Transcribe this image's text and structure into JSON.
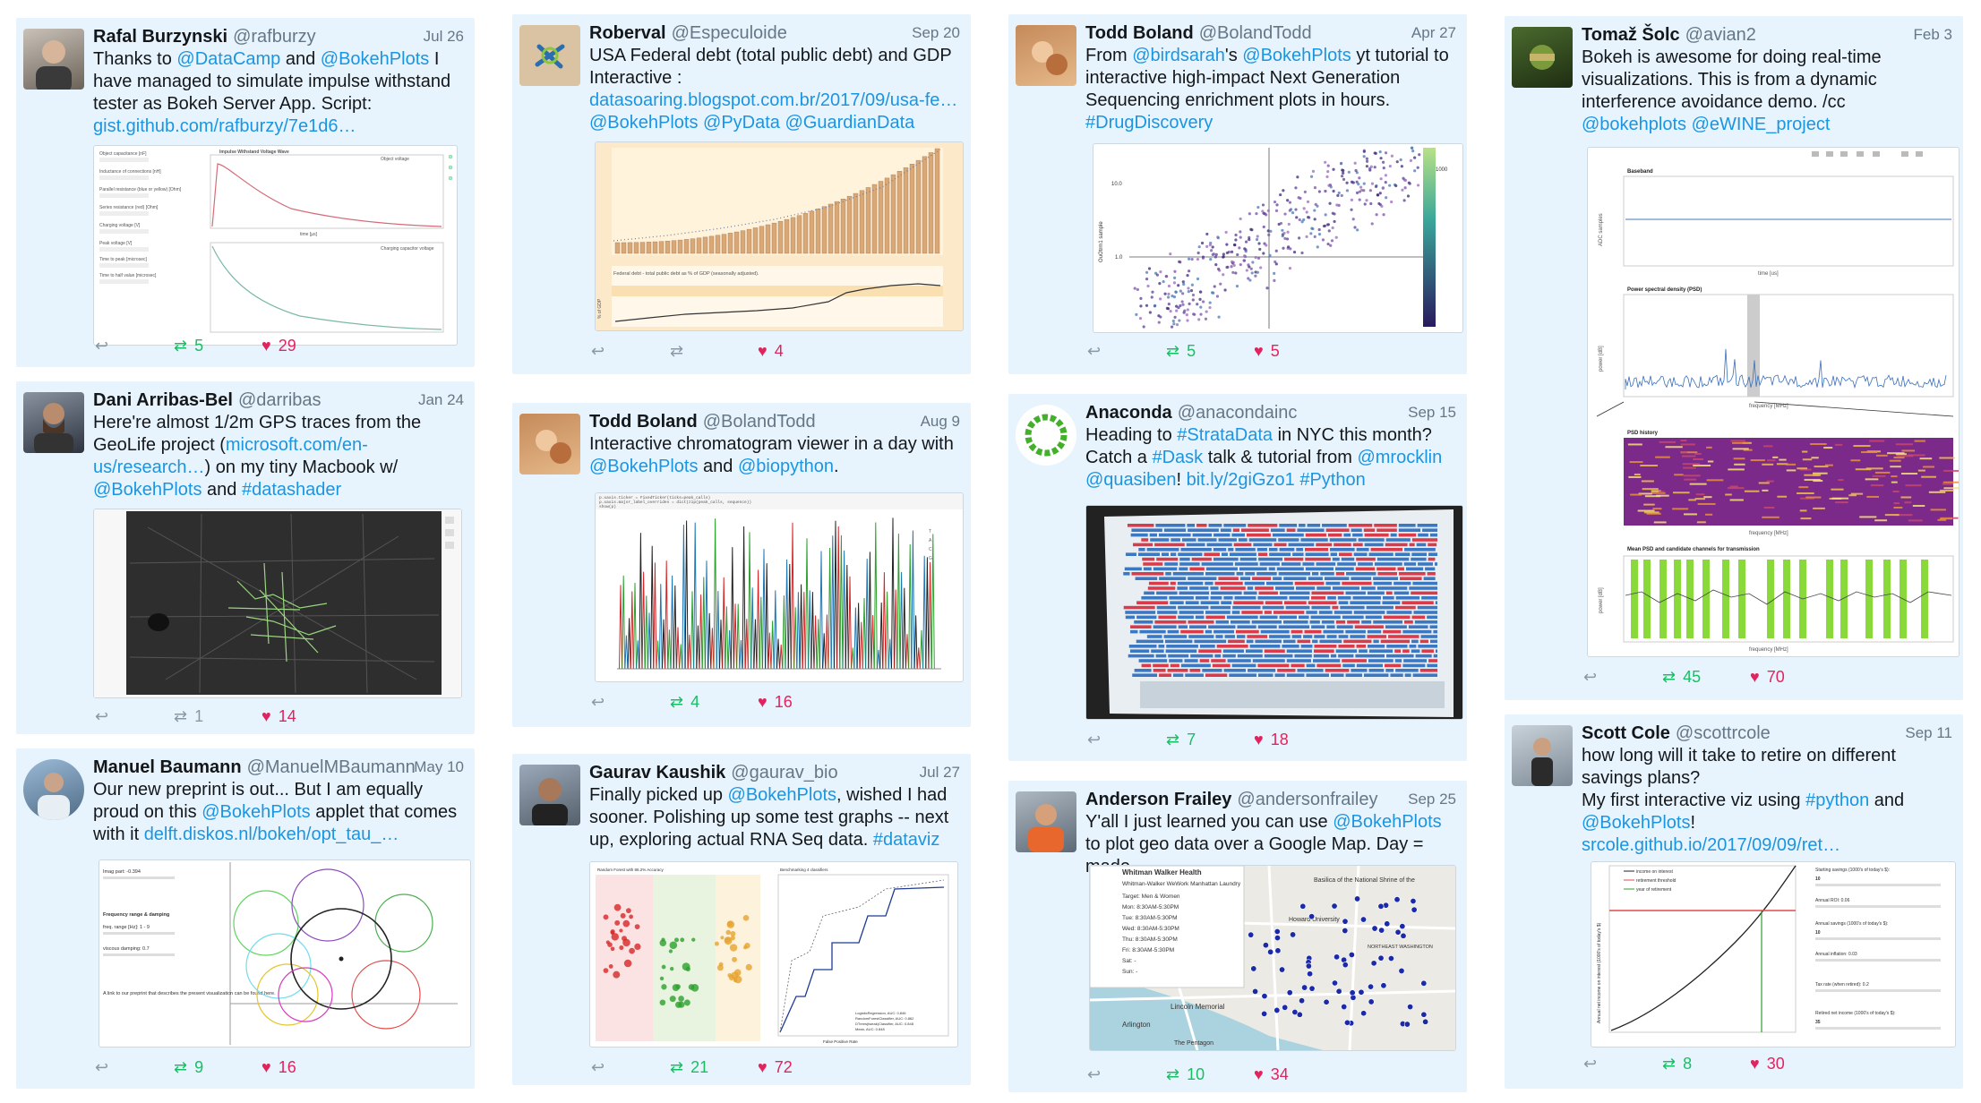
{
  "colors": {
    "card_bg": "#e8f4fd",
    "link": "#1b95e0",
    "retweet": "#17bf63",
    "like": "#e0245e"
  },
  "tweets": [
    {
      "name": "Rafal Burzynski",
      "handle": "@rafburzy",
      "date": "Jul 26",
      "parts": [
        {
          "t": "Thanks to "
        },
        {
          "t": "@DataCamp",
          "l": 1
        },
        {
          "t": " and "
        },
        {
          "t": "@BokehPlots",
          "l": 1
        },
        {
          "t": " I have managed to simulate impulse withstand tester as Bokeh Server App. Script: "
        },
        {
          "t": "gist.github.com/rafburzy/7e1d6…",
          "l": 1
        }
      ],
      "retweets": "5",
      "likes": "29"
    },
    {
      "name": "Dani Arribas-Bel",
      "handle": "@darribas",
      "date": "Jan 24",
      "parts": [
        {
          "t": "Here're almost 1/2m GPS traces from the GeoLife project ("
        },
        {
          "t": "microsoft.com/en-us/research…",
          "l": 1
        },
        {
          "t": ") on my tiny Macbook w/ "
        },
        {
          "t": "@BokehPlots",
          "l": 1
        },
        {
          "t": " and "
        },
        {
          "t": "#datashader",
          "l": 1
        }
      ],
      "retweets": "1",
      "likes": "14"
    },
    {
      "name": "Manuel Baumann",
      "handle": "@ManuelMBaumann",
      "date": "May 10",
      "parts": [
        {
          "t": "Our new preprint is out... But I am equally proud on this  "
        },
        {
          "t": "@BokehPlots",
          "l": 1
        },
        {
          "t": " applet that comes with it "
        },
        {
          "t": "delft.diskos.nl/bokeh/opt_tau_…",
          "l": 1
        }
      ],
      "retweets": "9",
      "likes": "16"
    },
    {
      "name": "Roberval",
      "handle": "@Especuloide",
      "date": "Sep 20",
      "parts": [
        {
          "t": "USA Federal debt (total public debt) and GDP Interactive : "
        },
        {
          "t": "datasoaring.blogspot.com.br/2017/09/usa-fe…",
          "l": 1
        },
        {
          "t": " "
        },
        {
          "t": "@BokehPlots @PyData @GuardianData",
          "l": 1
        }
      ],
      "retweets": "",
      "likes": "4"
    },
    {
      "name": "Todd Boland",
      "handle": "@BolandTodd",
      "date": "Aug 9",
      "parts": [
        {
          "t": "Interactive chromatogram viewer in a day with "
        },
        {
          "t": "@BokehPlots",
          "l": 1
        },
        {
          "t": " and "
        },
        {
          "t": "@biopython",
          "l": 1
        },
        {
          "t": "."
        }
      ],
      "retweets": "4",
      "likes": "16"
    },
    {
      "name": "Gaurav Kaushik",
      "handle": "@gaurav_bio",
      "date": "Jul 27",
      "parts": [
        {
          "t": "Finally picked up "
        },
        {
          "t": "@BokehPlots",
          "l": 1
        },
        {
          "t": ", wished I had sooner. Polishing up some test graphs -- next up, exploring actual RNA Seq data. "
        },
        {
          "t": "#dataviz",
          "l": 1
        }
      ],
      "retweets": "21",
      "likes": "72"
    },
    {
      "name": "Todd Boland",
      "handle": "@BolandTodd",
      "date": "Apr 27",
      "parts": [
        {
          "t": "From "
        },
        {
          "t": "@birdsarah",
          "l": 1
        },
        {
          "t": "'s "
        },
        {
          "t": "@BokehPlots",
          "l": 1
        },
        {
          "t": " yt tutorial to interactive high-impact Next Generation Sequencing enrichment plots in hours. "
        },
        {
          "t": "#DrugDiscovery",
          "l": 1
        }
      ],
      "retweets": "5",
      "likes": "5"
    },
    {
      "name": "Anaconda",
      "handle": "@anacondainc",
      "date": "Sep 15",
      "parts": [
        {
          "t": "Heading to "
        },
        {
          "t": "#StrataData",
          "l": 1
        },
        {
          "t": " in NYC this month? Catch a "
        },
        {
          "t": "#Dask",
          "l": 1
        },
        {
          "t": " talk & tutorial from "
        },
        {
          "t": "@mrocklin @quasiben",
          "l": 1
        },
        {
          "t": "! "
        },
        {
          "t": "bit.ly/2giGzo1 #Python",
          "l": 1
        }
      ],
      "retweets": "7",
      "likes": "18"
    },
    {
      "name": "Anderson Frailey",
      "handle": "@andersonfrailey",
      "date": "Sep 25",
      "parts": [
        {
          "t": "Y'all I just learned you can use "
        },
        {
          "t": "@BokehPlots",
          "l": 1
        },
        {
          "t": " to plot geo data over a Google Map. Day = made"
        }
      ],
      "retweets": "10",
      "likes": "34"
    },
    {
      "name": "Tomaž Šolc",
      "handle": "@avian2",
      "date": "Feb 3",
      "parts": [
        {
          "t": "Bokeh is awesome for doing real-time visualizations. This is from a dynamic interference avoidance demo. /cc "
        },
        {
          "t": "@bokehplots @eWINE_project",
          "l": 1
        }
      ],
      "retweets": "45",
      "likes": "70"
    },
    {
      "name": "Scott Cole",
      "handle": "@scottrcole",
      "date": "Sep 11",
      "parts": [
        {
          "t": "how long will it take to retire on different savings plans?\nMy first interactive viz using "
        },
        {
          "t": "#python",
          "l": 1
        },
        {
          "t": " and "
        },
        {
          "t": "@BokehPlots",
          "l": 1
        },
        {
          "t": "! "
        },
        {
          "t": "srcole.github.io/2017/09/09/ret…",
          "l": 1
        }
      ],
      "retweets": "8",
      "likes": "30"
    }
  ],
  "media_text": {
    "t0": {
      "top_title": "Impulse Withstand Voltage Wave",
      "top_legend": "Object voltage",
      "bottom_legend": "Charging capacitor voltage",
      "xlabel": "time [µs]",
      "fields": [
        "Object capacitance [nF]",
        "Inductance of connections [nH]",
        "Parallel resistance (blue or yellow) [Ohm]",
        "Series resistance (red) [Ohm]",
        "Charging voltage [V]",
        "Peak voltage [V]",
        "Time to peak [microsec]",
        "Time to half value [microsec]"
      ]
    },
    "t2": {
      "imag": "Imag part: -0.394",
      "freq": "Frequency range & damping",
      "range": "freq. range [Hz]: 1 - 9",
      "damp": "viscous damping: 0.7",
      "note": "A link to our preprint that describes the present visualization can be found here."
    },
    "t3": {
      "bottom_title": "Federal debt - total public debt as % of GDP (seasonally adjusted).",
      "ylabel": "% of GDP"
    },
    "t5": {
      "left_title": "Random Forest with 86.2% Accuracy",
      "right_title": "Benchmarking 4 classifiers",
      "xlabel": "False Positive Rate",
      "legend": [
        "LogisticRegression, AUC: 0.846",
        "RandomForestClassifier, AUC: 0.862",
        "DTrees(tweak)Classifier, AUC: 0.848",
        "Mean, AUC: 0.848"
      ]
    },
    "t6": {
      "ylabel": "OuOtrm1 sample",
      "y_hi": "10.0",
      "y_lo": "1.0",
      "cbar": "1000"
    },
    "t8": {
      "title": "Whitman Walker Health",
      "sub": "Whitman-Walker WeWork Manhattan Laundry",
      "lines": [
        "Target: Men & Women",
        "Mon: 8:30AM-5:30PM",
        "Tue: 8:30AM-5:30PM",
        "Wed: 8:30AM-5:30PM",
        "Thu: 8:30AM-5:30PM",
        "Fri: 8:30AM-5:30PM",
        "Sat: -",
        "Sun: -"
      ],
      "places": [
        "Basilica of the National Shrine of the",
        "Howard University",
        "NORTHEAST WASHINGTON",
        "Lincoln Memorial",
        "Arlington",
        "The Pentagon"
      ]
    },
    "t9": {
      "baseband": "Baseband",
      "psd": "Power spectral density (PSD)",
      "history": "PSD history",
      "mean": "Mean PSD and candidate channels for transmission",
      "time": "time [us]",
      "freq": "frequency [MHz]",
      "adc": "ADC samples",
      "power": "power [dB]"
    },
    "t10": {
      "legend": [
        "income on interest",
        "retirement threshold",
        "year of retirement"
      ],
      "ylabel": "Annual net income on interest (1000's of today's $)",
      "controls": [
        "Starting savings (1000's of today's $):",
        "10",
        "Annual ROI: 0.06",
        "Annual savings (1000's of today's $):",
        "10",
        "Annual inflation: 0.03",
        "Tax rate (when retired): 0.2",
        "Retired net income (1000's of today's $):",
        "35"
      ]
    }
  }
}
